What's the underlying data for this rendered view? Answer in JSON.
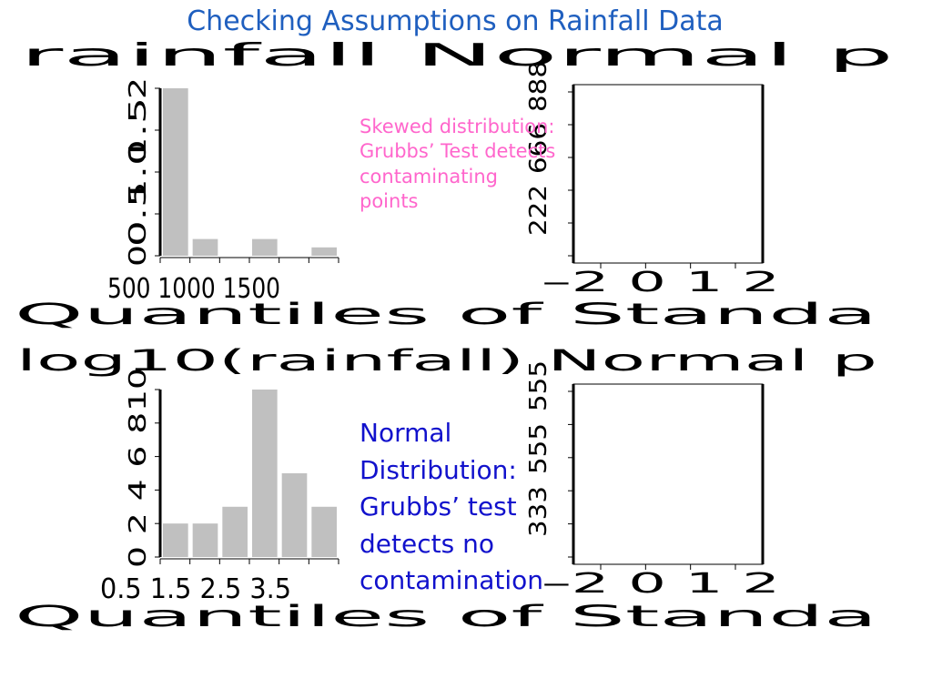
{
  "slide": {
    "title": "Checking Assumptions on Rainfall Data",
    "note_top": "Skewed distribution: Grubbs’ Test detects contaminating points",
    "note_bottom": "Normal Distribution: Grubbs’ test detects no contamination",
    "colors": {
      "title": "#1f5fbf",
      "note_top": "#ff66cc",
      "note_bottom": "#1111cc",
      "bar": "#c0c0c0",
      "axis": "#000000"
    }
  },
  "chart_data": [
    {
      "type": "bar",
      "title": "rainfall",
      "overlap_title": "Normal p",
      "ylim": [
        0,
        2
      ],
      "yticks": [
        "0",
        "0.5",
        "1.0",
        "1.5",
        "2"
      ],
      "values": [
        2.0,
        0.2,
        0.0,
        0.2,
        0.0,
        0.1
      ],
      "xlabel": "Quantiles of Standa",
      "xticks_garbled": "500 1000 1500"
    },
    {
      "type": "scatter",
      "title": "",
      "yticks": [
        "2",
        "6",
        "8"
      ],
      "xticks": [
        "–2",
        "0",
        "1",
        "2"
      ],
      "points": []
    },
    {
      "type": "bar",
      "title": "log10(rainfall)",
      "overlap_title": "Normal p",
      "ylim": [
        0,
        10
      ],
      "yticks": [
        "0",
        "2",
        "4",
        "6",
        "8",
        "10"
      ],
      "values": [
        2,
        2,
        3,
        10,
        5,
        3
      ],
      "xlabel": "Quantiles of Standa",
      "xticks_garbled": "0.5 1.5 2.5 3.5"
    },
    {
      "type": "scatter",
      "title": "",
      "yticks": [
        "3",
        "5",
        "5"
      ],
      "xticks": [
        "–2",
        "0",
        "1",
        "2"
      ],
      "points": []
    }
  ]
}
